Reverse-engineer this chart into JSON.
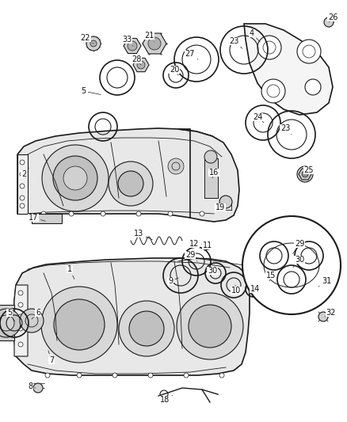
{
  "background_color": "#ffffff",
  "fig_width": 4.38,
  "fig_height": 5.33,
  "dpi": 100,
  "line_color": "#1a1a1a",
  "fill_light": "#e8e8e8",
  "fill_medium": "#d0d0d0",
  "fill_dark": "#b0b0b0",
  "label_fontsize": 7.0,
  "label_color": "#111111"
}
